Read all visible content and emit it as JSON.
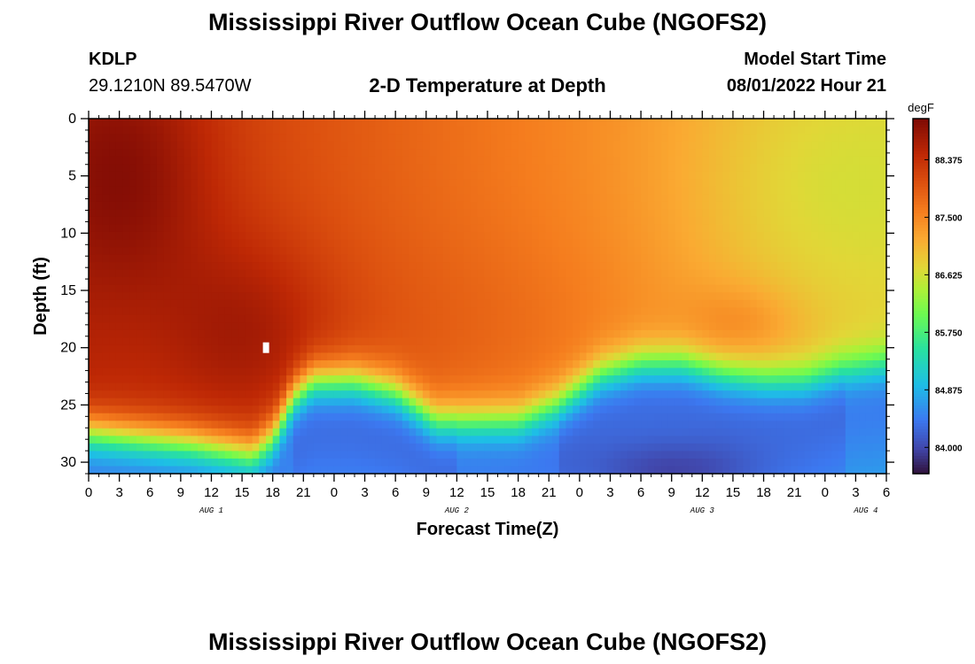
{
  "header": {
    "title": "Mississippi River Outflow Ocean Cube (NGOFS2)",
    "station_id": "KDLP",
    "station_coords": "29.1210N  89.5470W",
    "plot_title": "2-D Temperature at Depth",
    "model_start_label": "Model Start Time",
    "model_start_value": "08/01/2022 Hour 21"
  },
  "footer": {
    "title": "Mississippi River Outflow Ocean Cube (NGOFS2)"
  },
  "chart_data": {
    "type": "heatmap",
    "title": "2-D Temperature at Depth",
    "xlabel": "Forecast Time(Z)",
    "ylabel": "Depth (ft)",
    "units": "degF",
    "xlim": [
      0,
      78
    ],
    "ylim": [
      0,
      31
    ],
    "x_tick_labels": [
      "0",
      "3",
      "6",
      "9",
      "12",
      "15",
      "18",
      "21",
      "0",
      "3",
      "6",
      "9",
      "12",
      "15",
      "18",
      "21",
      "0",
      "3",
      "6",
      "9",
      "12",
      "15",
      "18",
      "21",
      "0",
      "3",
      "6"
    ],
    "day_labels": [
      "AUG 1",
      "AUG 2",
      "AUG 3",
      "AUG 4"
    ],
    "day_label_hours": [
      12,
      36,
      60,
      76
    ],
    "y_ticks": [
      0,
      5,
      10,
      15,
      20,
      25,
      30
    ],
    "colorbar": {
      "label": "degF",
      "range": [
        83.6,
        89.0
      ],
      "ticks": [
        84.0,
        84.875,
        85.75,
        86.625,
        87.5,
        88.375
      ],
      "tick_labels": [
        "84.000",
        "84.875",
        "85.750",
        "86.625",
        "87.500",
        "88.375"
      ]
    },
    "thermocline_depth_profile": {
      "hours": [
        0,
        10,
        16,
        18,
        20,
        22,
        26,
        30,
        34,
        38,
        42,
        46,
        50,
        54,
        58,
        62,
        66,
        70,
        74,
        78
      ],
      "depth_ft": [
        27.5,
        28.5,
        29.5,
        28.0,
        24.5,
        23.0,
        23.0,
        24.0,
        26.5,
        26.5,
        26.5,
        25.0,
        22.5,
        21.5,
        21.5,
        22.5,
        23.0,
        23.0,
        22.0,
        21.5
      ]
    },
    "missing_value_cell": {
      "hour": 17.3,
      "depth_ft": 20
    }
  }
}
